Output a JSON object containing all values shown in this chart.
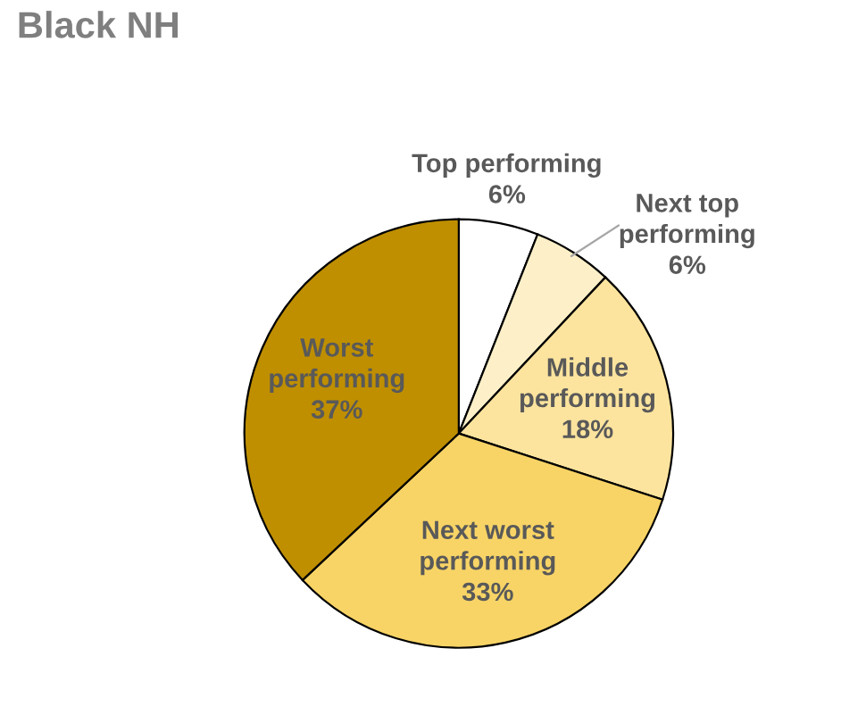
{
  "chart_data": {
    "type": "pie",
    "title": "Black NH",
    "categories": [
      "Top performing",
      "Next top\nperforming",
      "Middle\nperforming",
      "Next worst\nperforming",
      "Worst\nperforming"
    ],
    "values": [
      6,
      6,
      18,
      33,
      37
    ],
    "colors": [
      "#ffffff",
      "#fdf0c8",
      "#fde49e",
      "#f8d466",
      "#bf8f00"
    ],
    "value_labels": [
      "6%",
      "6%",
      "18%",
      "33%",
      "37%"
    ]
  }
}
